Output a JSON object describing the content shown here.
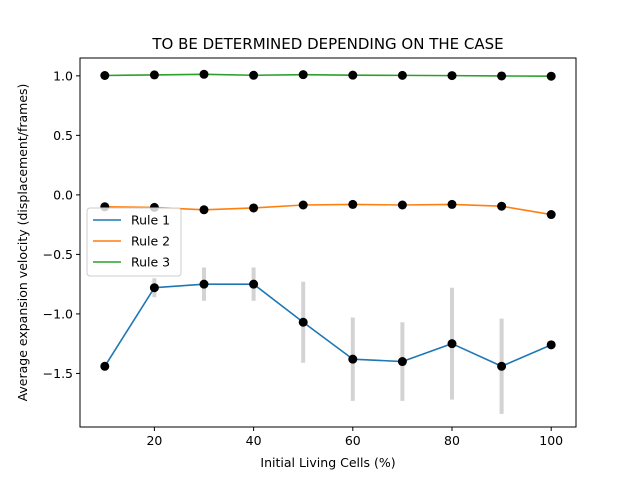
{
  "chart_data": {
    "type": "line",
    "title": "TO BE DETERMINED DEPENDING ON THE CASE",
    "xlabel": "Initial Living Cells (%)",
    "ylabel": "Average expansion velocity (displacement/frames)",
    "xlim": [
      5,
      105
    ],
    "ylim": [
      -1.95,
      1.15
    ],
    "xticks": [
      20,
      40,
      60,
      80,
      100
    ],
    "yticks": [
      1.0,
      0.5,
      0.0,
      -0.5,
      -1.0,
      -1.5
    ],
    "ytick_labels": [
      "1.0",
      "0.5",
      "0.0",
      "−0.5",
      "−1.0",
      "−1.5"
    ],
    "grid": false,
    "legend_position": "center-left",
    "x": [
      10,
      20,
      30,
      40,
      50,
      60,
      70,
      80,
      90,
      100
    ],
    "series": [
      {
        "name": "Rule 1",
        "color": "#1f77b4",
        "values": [
          -1.44,
          -0.78,
          -0.75,
          -0.75,
          -1.07,
          -1.38,
          -1.4,
          -1.25,
          -1.44,
          -1.26
        ],
        "error": [
          0.0,
          0.08,
          0.14,
          0.14,
          0.34,
          0.35,
          0.33,
          0.47,
          0.4,
          0.0
        ]
      },
      {
        "name": "Rule 2",
        "color": "#ff7f0e",
        "values": [
          -0.1,
          -0.105,
          -0.125,
          -0.11,
          -0.085,
          -0.08,
          -0.085,
          -0.08,
          -0.095,
          -0.165
        ],
        "error": [
          0,
          0,
          0,
          0,
          0,
          0,
          0,
          0,
          0,
          0
        ]
      },
      {
        "name": "Rule 3",
        "color": "#2ca02c",
        "values": [
          1.003,
          1.008,
          1.013,
          1.005,
          1.01,
          1.006,
          1.004,
          1.002,
          0.999,
          0.997
        ],
        "error": [
          0,
          0,
          0,
          0,
          0,
          0,
          0,
          0,
          0,
          0
        ]
      }
    ],
    "marker_color": "#000000",
    "errorbar_color": "#d3d3d3"
  }
}
